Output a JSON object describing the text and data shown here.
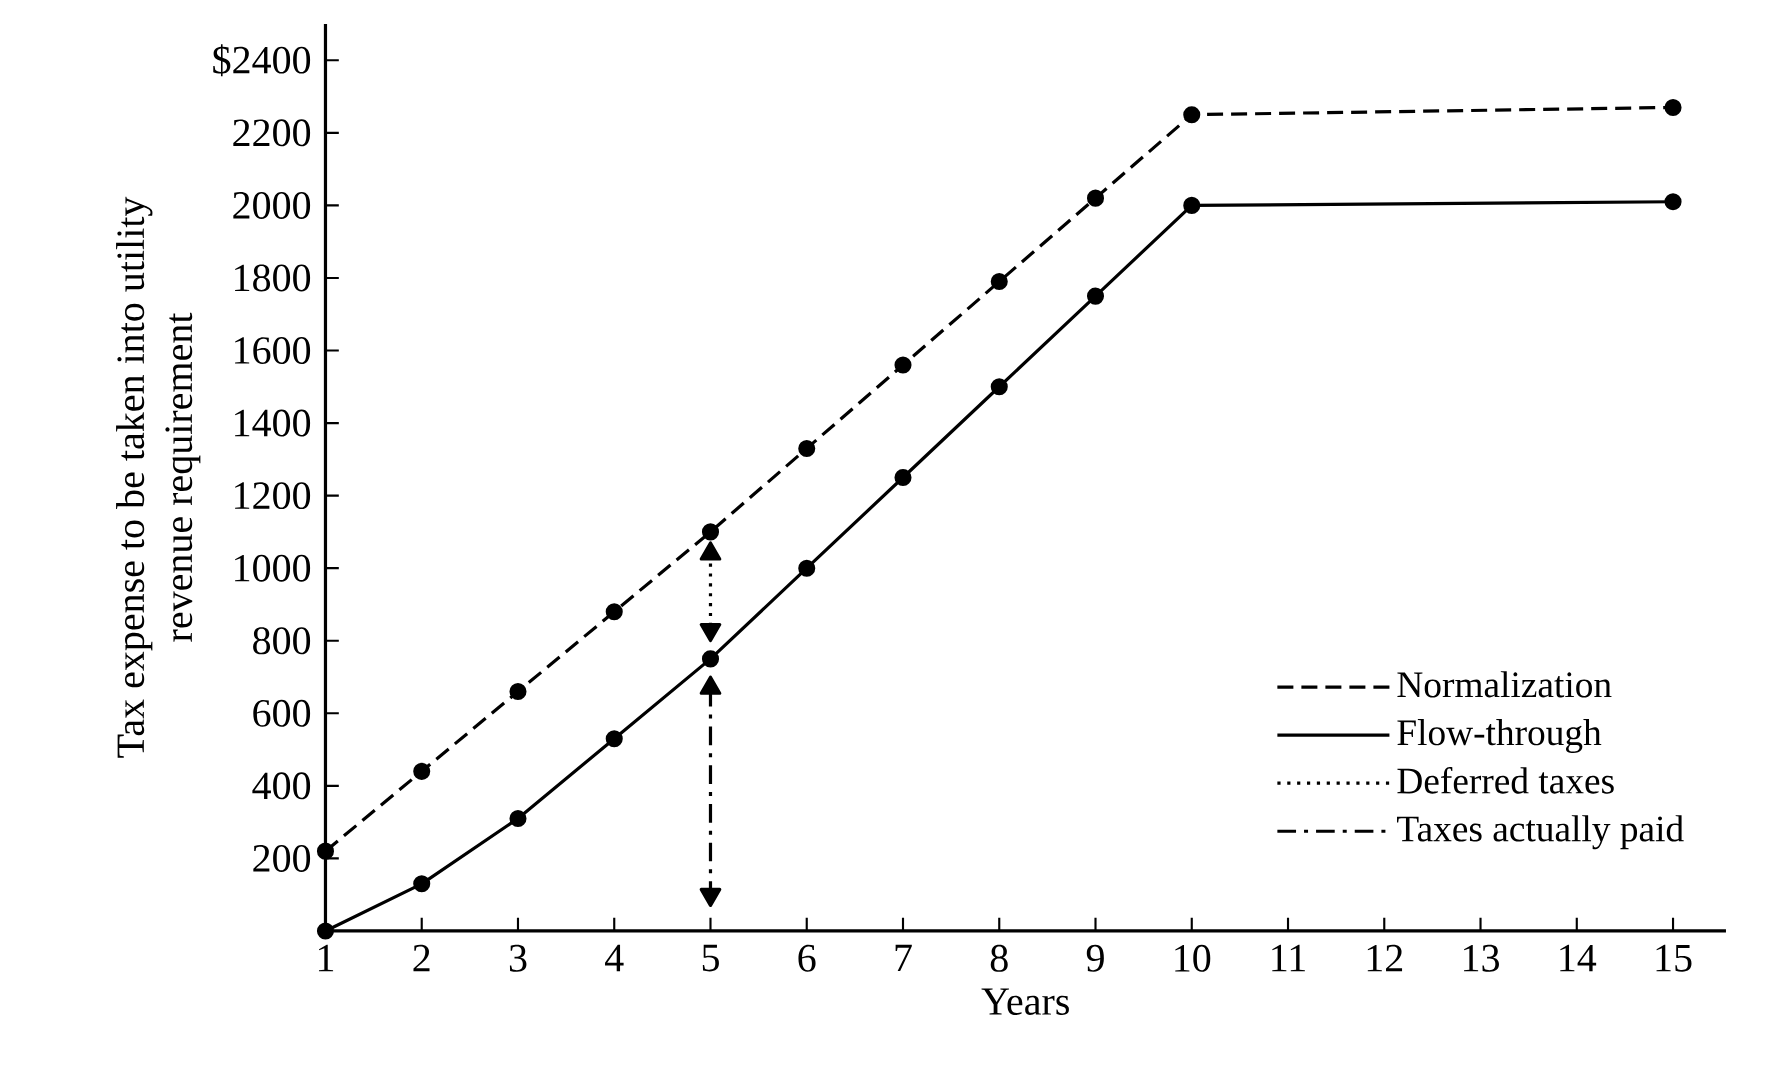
{
  "chart_data": {
    "type": "line",
    "xlabel": "Years",
    "ylabel": "Tax expense to be taken into utility revenue requirement",
    "xlim": [
      1,
      15.55
    ],
    "xticks": [
      1,
      2,
      3,
      4,
      5,
      6,
      7,
      8,
      9,
      10,
      11,
      12,
      13,
      14,
      15
    ],
    "ylim": [
      0,
      2500
    ],
    "yticks": [
      200,
      400,
      600,
      800,
      1000,
      1200,
      1400,
      1600,
      1800,
      2000,
      2200,
      {
        "value": 2400,
        "label": "$2400"
      }
    ],
    "legend": "bottom right",
    "marker": "circle",
    "grid": false,
    "series": [
      {
        "name": "Normalization",
        "color": "#000000",
        "line_style": "dashed",
        "x": [
          1,
          2,
          3,
          4,
          5,
          6,
          7,
          8,
          9,
          10,
          15
        ],
        "values": [
          220,
          440,
          660,
          880,
          1100,
          1330,
          1560,
          1790,
          2020,
          2250,
          2270
        ]
      },
      {
        "name": "Flow-through",
        "color": "#000000",
        "line_style": "solid",
        "x": [
          1,
          2,
          3,
          4,
          5,
          6,
          7,
          8,
          9,
          10,
          15
        ],
        "values": [
          0,
          130,
          310,
          530,
          750,
          1000,
          1250,
          1500,
          1750,
          2000,
          2010
        ]
      },
      {
        "name": "Deferred taxes",
        "color": "#000000",
        "line_style": "dotted",
        "marker": "triangle",
        "x": [
          5,
          5
        ],
        "values": [
          1040,
          830
        ]
      },
      {
        "name": "Taxes actually paid",
        "color": "#000000",
        "line_style": "dashdot",
        "marker": "triangle",
        "x": [
          5,
          5
        ],
        "values": [
          670,
          100
        ]
      }
    ]
  }
}
